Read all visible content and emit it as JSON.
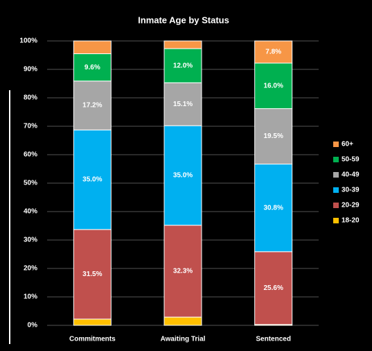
{
  "chart_data": {
    "type": "stacked_bar",
    "title": "Inmate Age by Status",
    "categories": [
      "Commitments",
      "Awaiting Trial",
      "Sentenced"
    ],
    "series": [
      {
        "name": "18-20",
        "color": "#ffc000",
        "values": [
          2.2,
          2.9,
          0.3
        ],
        "value_labels": [
          null,
          null,
          null
        ]
      },
      {
        "name": "20-29",
        "color": "#c0504d",
        "values": [
          31.5,
          32.3,
          25.6
        ],
        "value_labels": [
          "31.5%",
          "32.3%",
          "25.6%"
        ]
      },
      {
        "name": "30-39",
        "color": "#00b0f0",
        "values": [
          35.0,
          35.0,
          30.8
        ],
        "value_labels": [
          "35.0%",
          "35.0%",
          "30.8%"
        ]
      },
      {
        "name": "40-49",
        "color": "#a6a6a6",
        "values": [
          17.2,
          15.1,
          19.5
        ],
        "value_labels": [
          "17.2%",
          "15.1%",
          "19.5%"
        ]
      },
      {
        "name": "50-59",
        "color": "#00b050",
        "values": [
          9.6,
          12.0,
          16.0
        ],
        "value_labels": [
          "9.6%",
          "12.0%",
          "16.0%"
        ]
      },
      {
        "name": "60+",
        "color": "#f79646",
        "values": [
          4.5,
          2.7,
          7.8
        ],
        "value_labels": [
          null,
          null,
          "7.8%"
        ]
      }
    ],
    "ylim": [
      0,
      100
    ],
    "yticks": [
      {
        "value": 0,
        "label": "0%"
      },
      {
        "value": 10,
        "label": "10%"
      },
      {
        "value": 20,
        "label": "20%"
      },
      {
        "value": 30,
        "label": "30%"
      },
      {
        "value": 40,
        "label": "40%"
      },
      {
        "value": 50,
        "label": "50%"
      },
      {
        "value": 60,
        "label": "60%"
      },
      {
        "value": 70,
        "label": "70%"
      },
      {
        "value": 80,
        "label": "80%"
      },
      {
        "value": 90,
        "label": "90%"
      },
      {
        "value": 100,
        "label": "100%"
      }
    ],
    "grid": true,
    "legend": "right"
  }
}
